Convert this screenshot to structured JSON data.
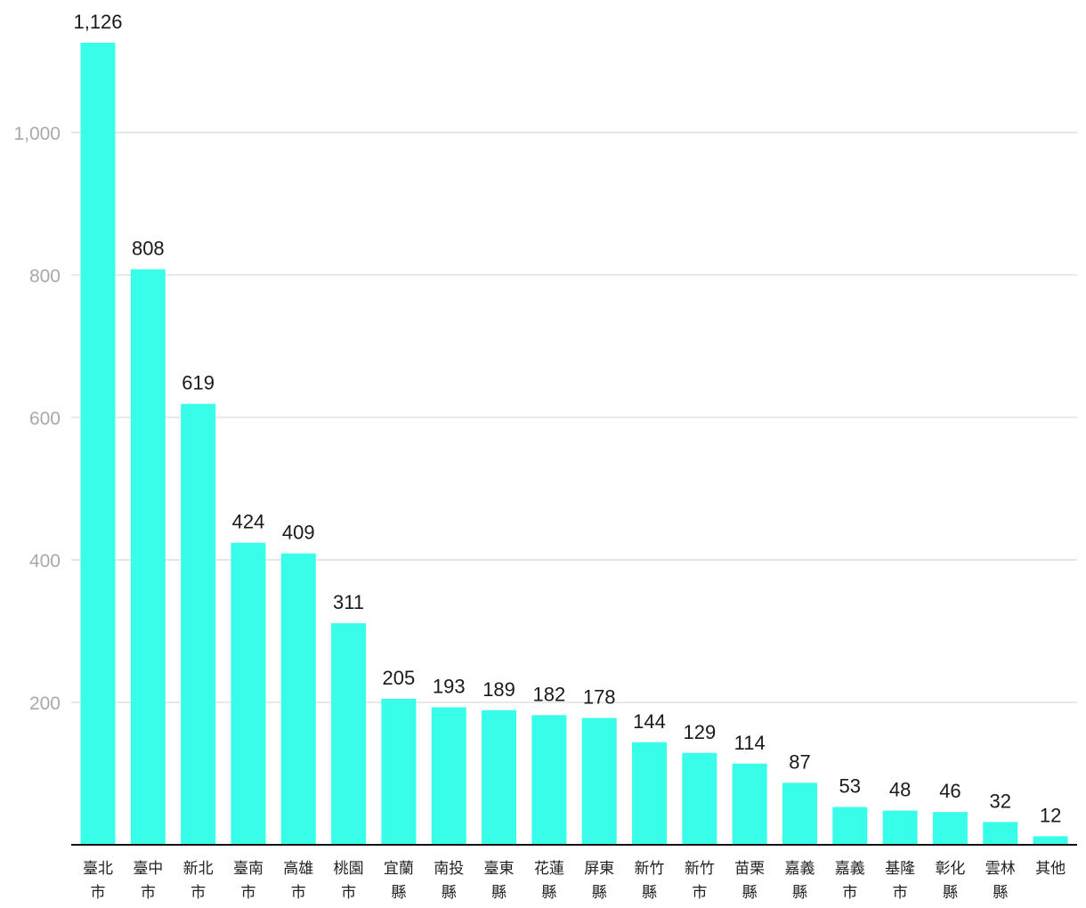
{
  "chart_data": {
    "type": "bar",
    "title": "",
    "xlabel": "",
    "ylabel": "",
    "ylim": [
      0,
      1126
    ],
    "yticks": [
      200,
      400,
      600,
      800,
      1000
    ],
    "ytick_labels": [
      "200",
      "400",
      "600",
      "800",
      "1,000"
    ],
    "grid": true,
    "categories": [
      "臺北市",
      "臺中市",
      "新北市",
      "臺南市",
      "高雄市",
      "桃園市",
      "宜蘭縣",
      "南投縣",
      "臺東縣",
      "花蓮縣",
      "屏東縣",
      "新竹縣",
      "新竹市",
      "苗栗縣",
      "嘉義縣",
      "嘉義市",
      "基隆市",
      "彰化縣",
      "雲林縣",
      "其他"
    ],
    "values": [
      1126,
      808,
      619,
      424,
      409,
      311,
      205,
      193,
      189,
      182,
      178,
      144,
      129,
      114,
      87,
      53,
      48,
      46,
      32,
      12
    ],
    "value_labels": [
      "1,126",
      "808",
      "619",
      "424",
      "409",
      "311",
      "205",
      "193",
      "189",
      "182",
      "178",
      "144",
      "129",
      "114",
      "87",
      "53",
      "48",
      "46",
      "32",
      "12"
    ],
    "colors": {
      "bar": "#38fde8",
      "grid": "#dcdcdc",
      "axis": "#111111",
      "tick_text": "#a9a9a9",
      "label_text": "#1a1a1a"
    }
  }
}
